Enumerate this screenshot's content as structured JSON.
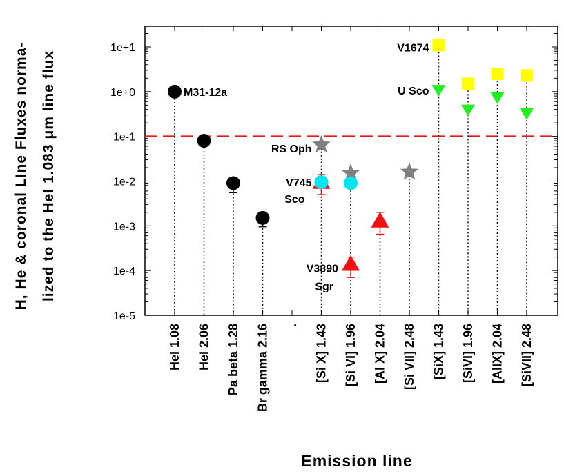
{
  "chart_data": {
    "type": "scatter",
    "xlabel": "Emission line",
    "ylabel_lines": [
      "H, He & coronal LIne Fluxes norma-",
      "lized to  the HeI 1.083 μm line flux"
    ],
    "yscale": "log",
    "ylim": [
      1e-05,
      30
    ],
    "yticks": [
      {
        "value": 10.0,
        "label": "1e+1"
      },
      {
        "value": 1.0,
        "label": "1e+0"
      },
      {
        "value": 0.1,
        "label": "1e-1"
      },
      {
        "value": 0.01,
        "label": "1e-2"
      },
      {
        "value": 0.001,
        "label": "1e-3"
      },
      {
        "value": 0.0001,
        "label": "1e-4"
      },
      {
        "value": 1e-05,
        "label": "1e-5"
      }
    ],
    "categories": [
      "HeI 1.08",
      "HeI  2.06",
      "Pa beta 1.28",
      "Br gamma 2.16",
      ".",
      "[Si X] 1.43",
      "[Si VI] 1.96",
      "[Al X] 2.04",
      "[Si VII] 2.48",
      "[SiX] 1.43",
      "[SiVI] 1.96",
      "[AlIX] 2.04",
      "[SiVII] 2.48"
    ],
    "reference_line": {
      "value": 0.1,
      "color": "#e0191a",
      "style": "dashed"
    },
    "series": [
      {
        "name": "M31-12a",
        "marker": "circle",
        "color": "#000000",
        "points": [
          {
            "cat": 0,
            "y": 1.0
          },
          {
            "cat": 1,
            "y": 0.08
          },
          {
            "cat": 2,
            "y": 0.009,
            "err_low": 0.0055
          },
          {
            "cat": 3,
            "y": 0.0015,
            "err_low": 0.00095
          }
        ]
      },
      {
        "name": "RS Oph",
        "marker": "star",
        "color": "#808080",
        "points": [
          {
            "cat": 5,
            "y": 0.065
          },
          {
            "cat": 6,
            "y": 0.015
          },
          {
            "cat": 8,
            "y": 0.016
          }
        ]
      },
      {
        "name": "V745 Sco",
        "marker": "circle",
        "color": "#00e5ee",
        "points": [
          {
            "cat": 5,
            "y": 0.0095
          },
          {
            "cat": 6,
            "y": 0.009
          }
        ]
      },
      {
        "name": "V3890 Sgr",
        "marker": "triangle-up",
        "color": "#ee1111",
        "points": [
          {
            "cat": 5,
            "y": 0.0095,
            "err_low": 0.005,
            "err_high": 0.014
          },
          {
            "cat": 6,
            "y": 0.00014,
            "err_low": 7e-05,
            "err_high": 0.0002
          },
          {
            "cat": 7,
            "y": 0.0013,
            "err_low": 0.00065,
            "err_high": 0.002
          }
        ]
      },
      {
        "name": "V1674",
        "marker": "square",
        "color": "#ffff00",
        "points": [
          {
            "cat": 9,
            "y": 11
          },
          {
            "cat": 10,
            "y": 1.5
          },
          {
            "cat": 11,
            "y": 2.5
          },
          {
            "cat": 12,
            "y": 2.3
          }
        ]
      },
      {
        "name": "U Sco",
        "marker": "triangle-down",
        "color": "#22ee22",
        "points": [
          {
            "cat": 9,
            "y": 1.1
          },
          {
            "cat": 10,
            "y": 0.4
          },
          {
            "cat": 11,
            "y": 0.75
          },
          {
            "cat": 12,
            "y": 0.33
          }
        ]
      }
    ],
    "annotations": [
      {
        "text": "M31-12a",
        "cat": 0,
        "y": 1.0,
        "anchor": "start"
      },
      {
        "text": "RS Oph",
        "cat": 5,
        "y": 0.065,
        "anchor": "end"
      },
      {
        "text": "V745",
        "cat": 5,
        "y": 0.0095,
        "anchor": "end"
      },
      {
        "text": "Sco",
        "cat": 5,
        "y": 0.0095,
        "anchor": "end",
        "line": 2
      },
      {
        "text": "V3890",
        "cat": 6,
        "y": 0.00014,
        "anchor": "end"
      },
      {
        "text": "Sgr",
        "cat": 6,
        "y": 0.00014,
        "anchor": "end",
        "line": 2
      },
      {
        "text": "V1674",
        "cat": 9,
        "y": 11,
        "anchor": "end"
      },
      {
        "text": "U Sco",
        "cat": 9,
        "y": 1.1,
        "anchor": "end"
      }
    ]
  }
}
